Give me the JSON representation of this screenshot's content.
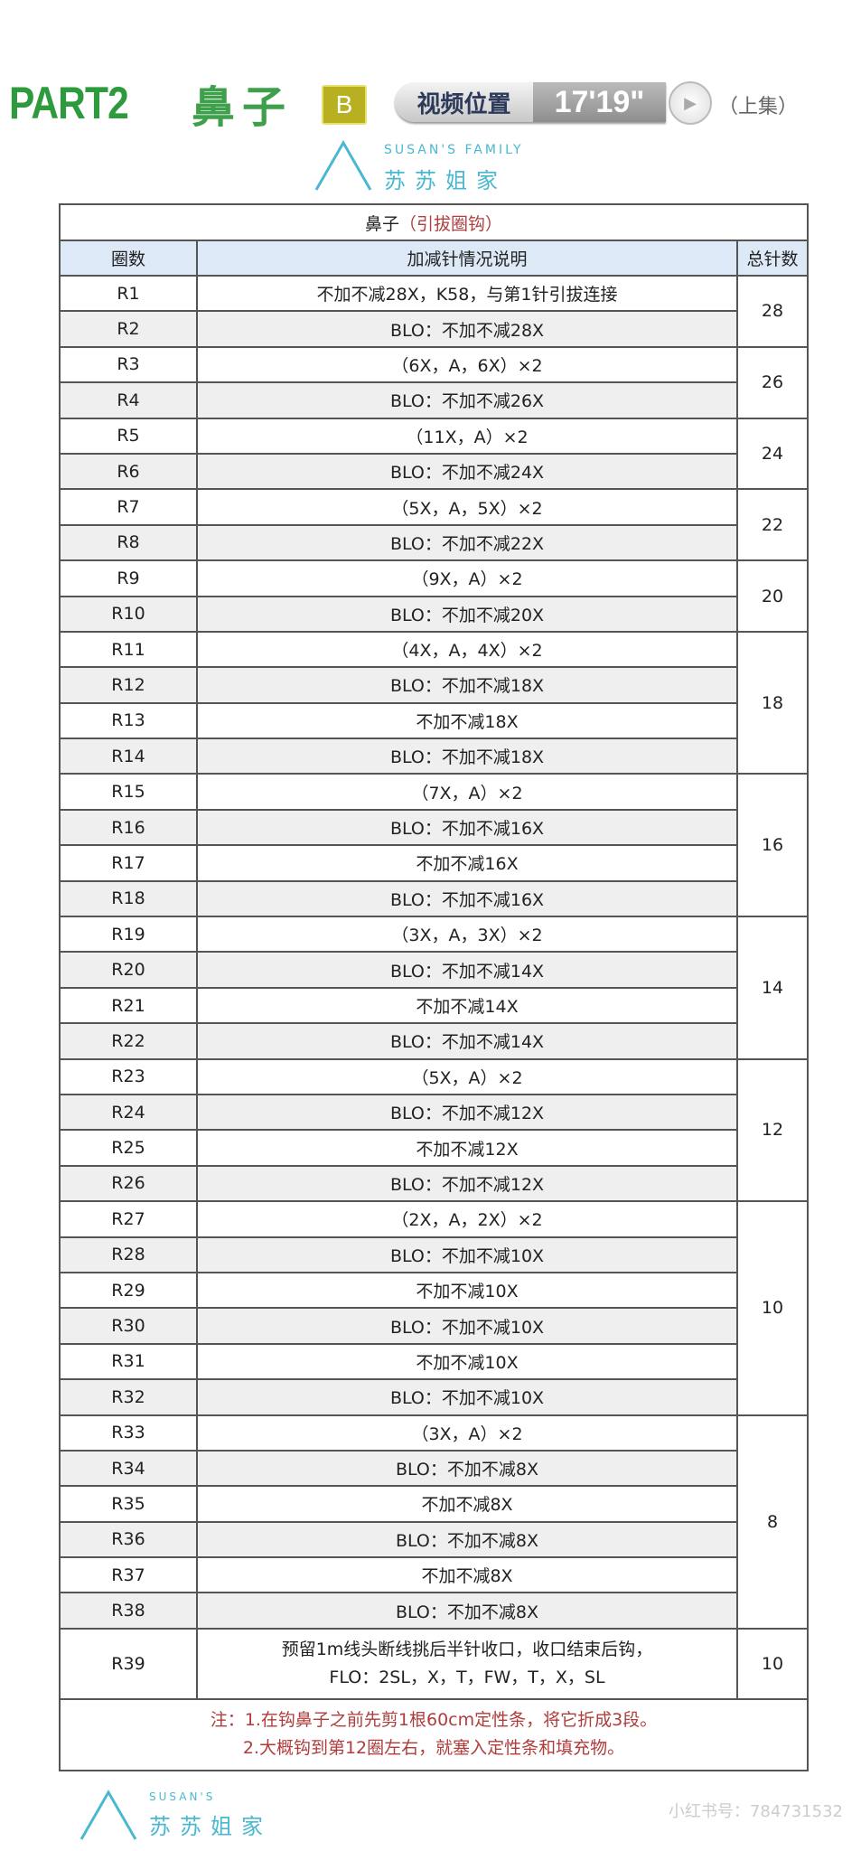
{
  "header": {
    "part": "PART2",
    "name": "鼻子",
    "badge": "B",
    "video_label": "视频位置",
    "video_time": "17'19\"",
    "episode": "（上集）"
  },
  "table": {
    "caption": "鼻子",
    "caption_sub": "（引拔圈钩）",
    "columns": [
      "圈数",
      "加减针情况说明",
      "总针数"
    ],
    "rows": [
      {
        "r": "R1",
        "d": "不加不减28X，K58，与第1针引拔连接"
      },
      {
        "r": "R2",
        "d": "BLO：不加不减28X"
      },
      {
        "r": "R3",
        "d": "（6X，A，6X）×2"
      },
      {
        "r": "R4",
        "d": "BLO：不加不减26X"
      },
      {
        "r": "R5",
        "d": "（11X，A）×2"
      },
      {
        "r": "R6",
        "d": "BLO：不加不减24X"
      },
      {
        "r": "R7",
        "d": "（5X，A，5X）×2"
      },
      {
        "r": "R8",
        "d": "BLO：不加不减22X"
      },
      {
        "r": "R9",
        "d": "（9X，A）×2"
      },
      {
        "r": "R10",
        "d": "BLO：不加不减20X"
      },
      {
        "r": "R11",
        "d": "（4X，A，4X）×2"
      },
      {
        "r": "R12",
        "d": "BLO：不加不减18X"
      },
      {
        "r": "R13",
        "d": "不加不减18X"
      },
      {
        "r": "R14",
        "d": "BLO：不加不减18X"
      },
      {
        "r": "R15",
        "d": "（7X，A）×2"
      },
      {
        "r": "R16",
        "d": "BLO：不加不减16X"
      },
      {
        "r": "R17",
        "d": "不加不减16X"
      },
      {
        "r": "R18",
        "d": "BLO：不加不减16X"
      },
      {
        "r": "R19",
        "d": "（3X，A，3X）×2"
      },
      {
        "r": "R20",
        "d": "BLO：不加不减14X"
      },
      {
        "r": "R21",
        "d": "不加不减14X"
      },
      {
        "r": "R22",
        "d": "BLO：不加不减14X"
      },
      {
        "r": "R23",
        "d": "（5X，A）×2"
      },
      {
        "r": "R24",
        "d": "BLO：不加不减12X"
      },
      {
        "r": "R25",
        "d": "不加不减12X"
      },
      {
        "r": "R26",
        "d": "BLO：不加不减12X"
      },
      {
        "r": "R27",
        "d": "（2X，A，2X）×2"
      },
      {
        "r": "R28",
        "d": "BLO：不加不减10X"
      },
      {
        "r": "R29",
        "d": "不加不减10X"
      },
      {
        "r": "R30",
        "d": "BLO：不加不减10X"
      },
      {
        "r": "R31",
        "d": "不加不减10X"
      },
      {
        "r": "R32",
        "d": "BLO：不加不减10X"
      },
      {
        "r": "R33",
        "d": "（3X，A）×2"
      },
      {
        "r": "R34",
        "d": "BLO：不加不减8X"
      },
      {
        "r": "R35",
        "d": "不加不减8X"
      },
      {
        "r": "R36",
        "d": "BLO：不加不减8X"
      },
      {
        "r": "R37",
        "d": "不加不减8X"
      },
      {
        "r": "R38",
        "d": "BLO：不加不减8X"
      },
      {
        "r": "R39",
        "d": "预留1m线头断线挑后半针收口，收口结束后钩，",
        "d2": "FLO：2SL，X，T，FW，T，X，SL"
      }
    ],
    "totals": [
      {
        "rows": 2,
        "v": "28"
      },
      {
        "rows": 2,
        "v": "26"
      },
      {
        "rows": 2,
        "v": "24"
      },
      {
        "rows": 2,
        "v": "22"
      },
      {
        "rows": 2,
        "v": "20"
      },
      {
        "rows": 4,
        "v": "18"
      },
      {
        "rows": 4,
        "v": "16"
      },
      {
        "rows": 4,
        "v": "14"
      },
      {
        "rows": 4,
        "v": "12"
      },
      {
        "rows": 6,
        "v": "10"
      },
      {
        "rows": 6,
        "v": "8"
      },
      {
        "rows": 1,
        "v": "10"
      }
    ],
    "notes": [
      "注：1.在钩鼻子之前先剪1根60cm定性条，将它折成3段。",
      "2.大概钩到第12圈左右，就塞入定性条和填充物。"
    ]
  },
  "watermark": {
    "en": "SUSAN'S FAMILY",
    "cn": "苏苏姐家",
    "color": "#4ab8d0"
  },
  "footer_watermark": "小红书号：784731532"
}
